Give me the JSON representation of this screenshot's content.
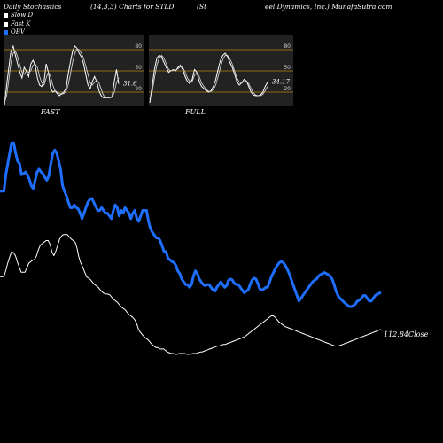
{
  "header": {
    "left": "Daily Stochastics",
    "params": "(14,3,3) Charts for STLD",
    "company_prefix": "(St",
    "company_suffix": "eel Dynamics, Inc.) MunafaSutra.com"
  },
  "legend": [
    {
      "label": "Slow  D",
      "color": "#ffffff"
    },
    {
      "label": "Fast  K",
      "color": "#ffffff"
    },
    {
      "label": "OBV",
      "color": "#1e6fff"
    }
  ],
  "chart_data": [
    {
      "type": "line",
      "title": "FAST",
      "ylim": [
        0,
        100
      ],
      "levels": [
        20,
        50,
        80
      ],
      "level_labels": [
        "80",
        "50",
        "20"
      ],
      "value_label": "31.6",
      "series": [
        {
          "name": "Fast  K",
          "values": [
            2,
            30,
            55,
            78,
            85,
            72,
            60,
            48,
            40,
            55,
            50,
            42,
            60,
            65,
            58,
            40,
            30,
            28,
            35,
            60,
            48,
            25,
            20,
            22,
            18,
            15,
            18,
            20,
            25,
            45,
            62,
            78,
            85,
            82,
            75,
            70,
            60,
            45,
            30,
            25,
            35,
            42,
            35,
            22,
            15,
            12,
            12,
            12,
            12,
            14,
            35,
            52,
            31.6
          ]
        },
        {
          "name": "Slow  D",
          "values": [
            5,
            15,
            38,
            62,
            75,
            78,
            70,
            58,
            48,
            45,
            50,
            48,
            50,
            58,
            60,
            55,
            42,
            33,
            30,
            40,
            48,
            42,
            30,
            22,
            20,
            18,
            17,
            18,
            21,
            30,
            45,
            62,
            75,
            81,
            80,
            75,
            68,
            57,
            45,
            33,
            30,
            34,
            37,
            33,
            24,
            16,
            13,
            12,
            12,
            13,
            20,
            34,
            40
          ]
        }
      ]
    },
    {
      "type": "line",
      "title": "FULL",
      "ylim": [
        0,
        100
      ],
      "levels": [
        20,
        50,
        80
      ],
      "level_labels": [
        "80",
        "50",
        "20"
      ],
      "value_label": "34.17",
      "series": [
        {
          "name": "Fast  K",
          "values": [
            5,
            28,
            52,
            68,
            72,
            70,
            62,
            55,
            48,
            50,
            52,
            50,
            55,
            58,
            52,
            42,
            35,
            32,
            38,
            52,
            48,
            35,
            28,
            25,
            22,
            20,
            22,
            28,
            38,
            52,
            65,
            72,
            75,
            70,
            62,
            55,
            45,
            35,
            30,
            33,
            38,
            36,
            28,
            20,
            16,
            15,
            15,
            16,
            20,
            28,
            34.17
          ]
        },
        {
          "name": "Slow  D",
          "values": [
            10,
            20,
            40,
            58,
            68,
            72,
            68,
            60,
            52,
            50,
            51,
            51,
            53,
            56,
            55,
            48,
            40,
            35,
            35,
            44,
            48,
            42,
            33,
            28,
            24,
            21,
            21,
            24,
            30,
            42,
            55,
            66,
            72,
            72,
            67,
            60,
            50,
            40,
            34,
            33,
            35,
            36,
            32,
            25,
            19,
            16,
            15,
            15,
            17,
            22,
            28
          ]
        }
      ]
    },
    {
      "type": "line",
      "title": "",
      "value_label": "112.84Close",
      "series": [
        {
          "name": "OBV",
          "values": [
            250,
            250,
            250,
            220,
            200,
            180,
            162,
            162,
            180,
            195,
            200,
            220,
            218,
            215,
            220,
            228,
            240,
            245,
            230,
            215,
            210,
            215,
            218,
            225,
            230,
            222,
            200,
            182,
            175,
            180,
            195,
            210,
            240,
            250,
            258,
            270,
            280,
            280,
            275,
            280,
            282,
            290,
            300,
            290,
            280,
            270,
            265,
            263,
            270,
            278,
            285,
            285,
            280,
            285,
            290,
            290,
            295,
            300,
            285,
            275,
            280,
            295,
            285,
            290,
            280,
            285,
            290,
            300,
            290,
            285,
            300,
            305,
            295,
            285,
            285,
            285,
            305,
            318,
            325,
            330,
            335,
            335,
            340,
            350,
            360,
            360,
            372,
            375,
            378,
            380,
            385,
            395,
            400,
            410,
            415,
            420,
            420,
            425,
            420,
            405,
            395,
            400,
            410,
            415,
            420,
            422,
            420,
            420,
            425,
            430,
            432,
            425,
            420,
            415,
            420,
            425,
            422,
            412,
            410,
            412,
            418,
            420,
            420,
            425,
            430,
            435,
            432,
            430,
            420,
            412,
            408,
            410,
            418,
            428,
            430,
            428,
            425,
            425,
            415,
            405,
            398,
            390,
            385,
            380,
            378,
            380,
            385,
            392,
            400,
            410,
            420,
            430,
            440,
            450,
            445,
            440,
            435,
            430,
            425,
            420,
            415,
            412,
            410,
            405,
            402,
            400,
            398,
            400,
            402,
            405,
            410,
            420,
            432,
            440,
            445,
            448,
            452,
            455,
            458,
            460,
            460,
            458,
            455,
            450,
            448,
            445,
            440,
            440,
            445,
            450,
            450,
            445,
            440,
            438,
            436,
            434
          ]
        },
        {
          "name": "Close",
          "values": [
            318,
            318,
            318,
            310,
            300,
            292,
            285,
            286,
            290,
            298,
            305,
            312,
            312,
            312,
            306,
            300,
            298,
            296,
            295,
            290,
            282,
            276,
            274,
            272,
            270,
            270,
            275,
            285,
            290,
            284,
            276,
            268,
            264,
            262,
            262,
            262,
            265,
            268,
            270,
            272,
            280,
            292,
            300,
            305,
            312,
            318,
            320,
            322,
            325,
            328,
            330,
            332,
            335,
            338,
            340,
            341,
            341,
            342,
            345,
            348,
            350,
            352,
            355,
            358,
            360,
            362,
            365,
            368,
            370,
            372,
            375,
            380,
            388,
            392,
            395,
            398,
            400,
            402,
            405,
            408,
            410,
            412,
            412,
            414,
            414,
            414,
            416,
            418,
            419,
            420,
            420,
            421,
            421,
            420,
            420,
            420,
            420,
            421,
            421,
            421,
            420,
            420,
            420,
            419,
            418,
            418,
            417,
            416,
            415,
            414,
            413,
            412,
            411,
            410,
            410,
            409,
            408,
            408,
            407,
            406,
            405,
            404,
            403,
            402,
            401,
            400,
            399,
            398,
            396,
            394,
            392,
            390,
            388,
            386,
            384,
            382,
            380,
            378,
            376,
            374,
            372,
            370,
            370,
            372,
            375,
            378,
            380,
            382,
            384,
            385,
            386,
            387,
            388,
            389,
            390,
            391,
            392,
            393,
            394,
            395,
            396,
            397,
            398,
            399,
            400,
            401,
            402,
            403,
            404,
            405,
            406,
            407,
            408,
            409,
            410,
            410,
            410,
            409,
            408,
            407,
            406,
            405,
            404,
            403,
            402,
            401,
            400,
            399,
            398,
            397,
            396,
            395,
            394,
            393,
            392,
            391,
            390,
            389,
            388
          ]
        }
      ]
    }
  ]
}
